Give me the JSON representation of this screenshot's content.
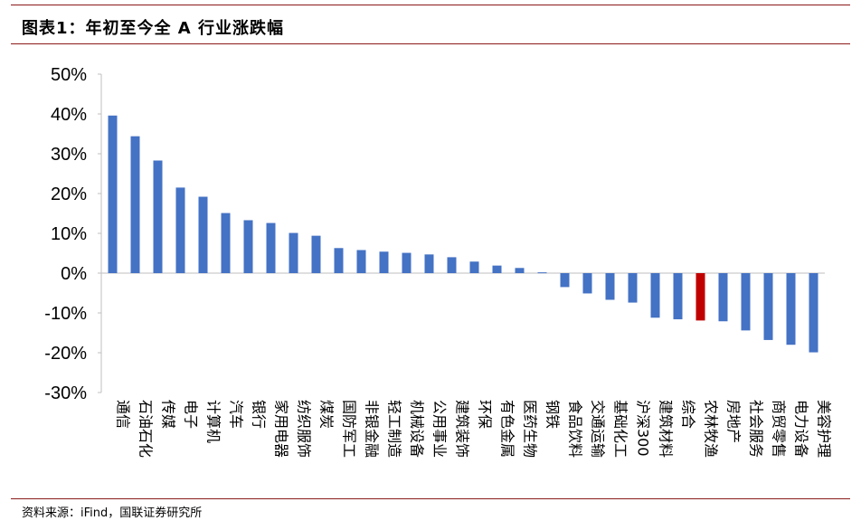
{
  "header": {
    "title": "图表1：年初至今全 A 行业涨跌幅"
  },
  "footer": {
    "source": "资料来源：iFind，国联证券研究所"
  },
  "colors": {
    "bar": "#4472c4",
    "highlight": "#c00000",
    "rule": "#8b1a1a"
  },
  "chart_data": {
    "type": "bar",
    "title": "",
    "xlabel": "",
    "ylabel": "",
    "ylim": [
      -30,
      50
    ],
    "yticks": [
      -30,
      -20,
      -10,
      0,
      10,
      20,
      30,
      40,
      50
    ],
    "ytick_suffix": "%",
    "grid": false,
    "legend": "none",
    "highlight_category": "农林牧渔",
    "categories": [
      "通信",
      "石油石化",
      "传媒",
      "电子",
      "计算机",
      "汽车",
      "银行",
      "家用电器",
      "纺织服饰",
      "煤炭",
      "国防军工",
      "非银金融",
      "轻工制造",
      "机械设备",
      "公用事业",
      "建筑装饰",
      "环保",
      "有色金属",
      "医药生物",
      "钢铁",
      "食品饮料",
      "交通运输",
      "基础化工",
      "沪深300",
      "建筑材料",
      "综合",
      "农林牧渔",
      "房地产",
      "社会服务",
      "商贸零售",
      "电力设备",
      "美容护理"
    ],
    "values": [
      39.6,
      34.4,
      28.3,
      21.5,
      19.2,
      15.1,
      13.3,
      12.6,
      10.1,
      9.4,
      6.3,
      5.8,
      5.4,
      5.1,
      4.7,
      4.0,
      2.9,
      1.9,
      1.3,
      0.2,
      -3.5,
      -5.1,
      -6.7,
      -7.4,
      -11.2,
      -11.6,
      -11.9,
      -12.1,
      -14.4,
      -16.8,
      -18.0,
      -19.9
    ]
  }
}
